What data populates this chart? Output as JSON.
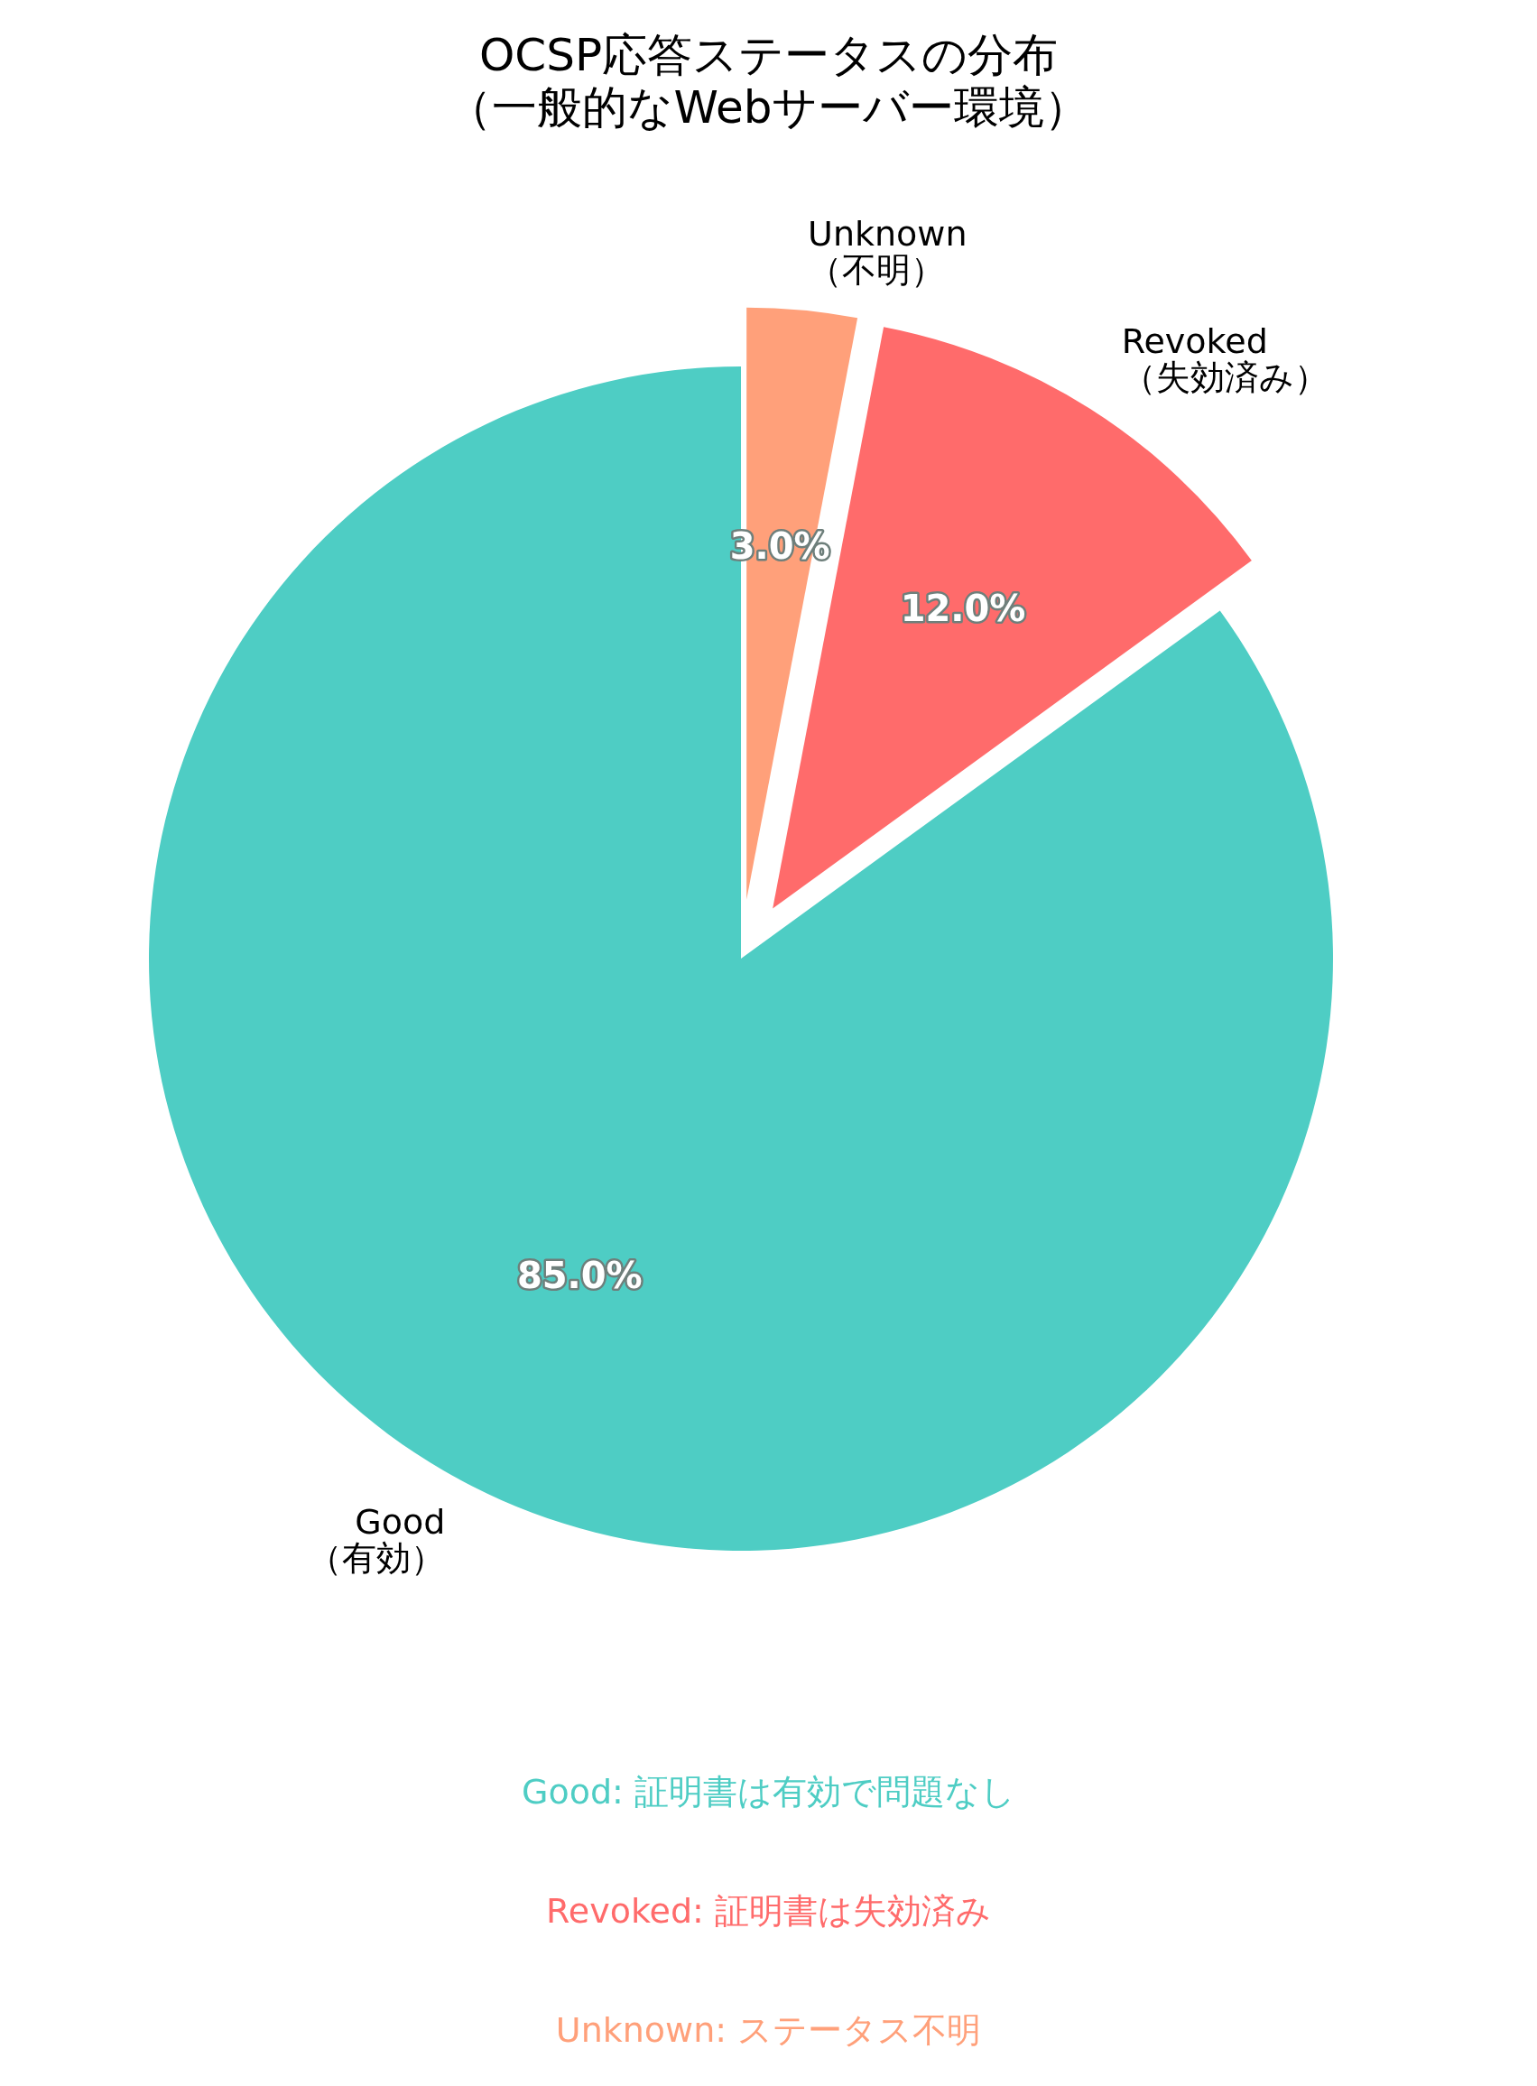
{
  "chart_data": {
    "type": "pie",
    "title": "OCSP応答ステータスの分布",
    "subtitle": "（一般的なWebサーバー環境）",
    "categories": [
      "Good\n（有効）",
      "Revoked\n（失効済み）",
      "Unknown\n（不明）"
    ],
    "values": [
      85.0,
      12.0,
      3.0
    ],
    "colors": [
      "#4ecdc4",
      "#ff6b6b",
      "#ffa07a"
    ],
    "value_labels": [
      "85.0%",
      "12.0%",
      "3.0%"
    ],
    "annotations": [
      "Good: 証明書は有効で問題なし",
      "Revoked: 証明書は失効済み",
      "Unknown: ステータス不明"
    ]
  }
}
